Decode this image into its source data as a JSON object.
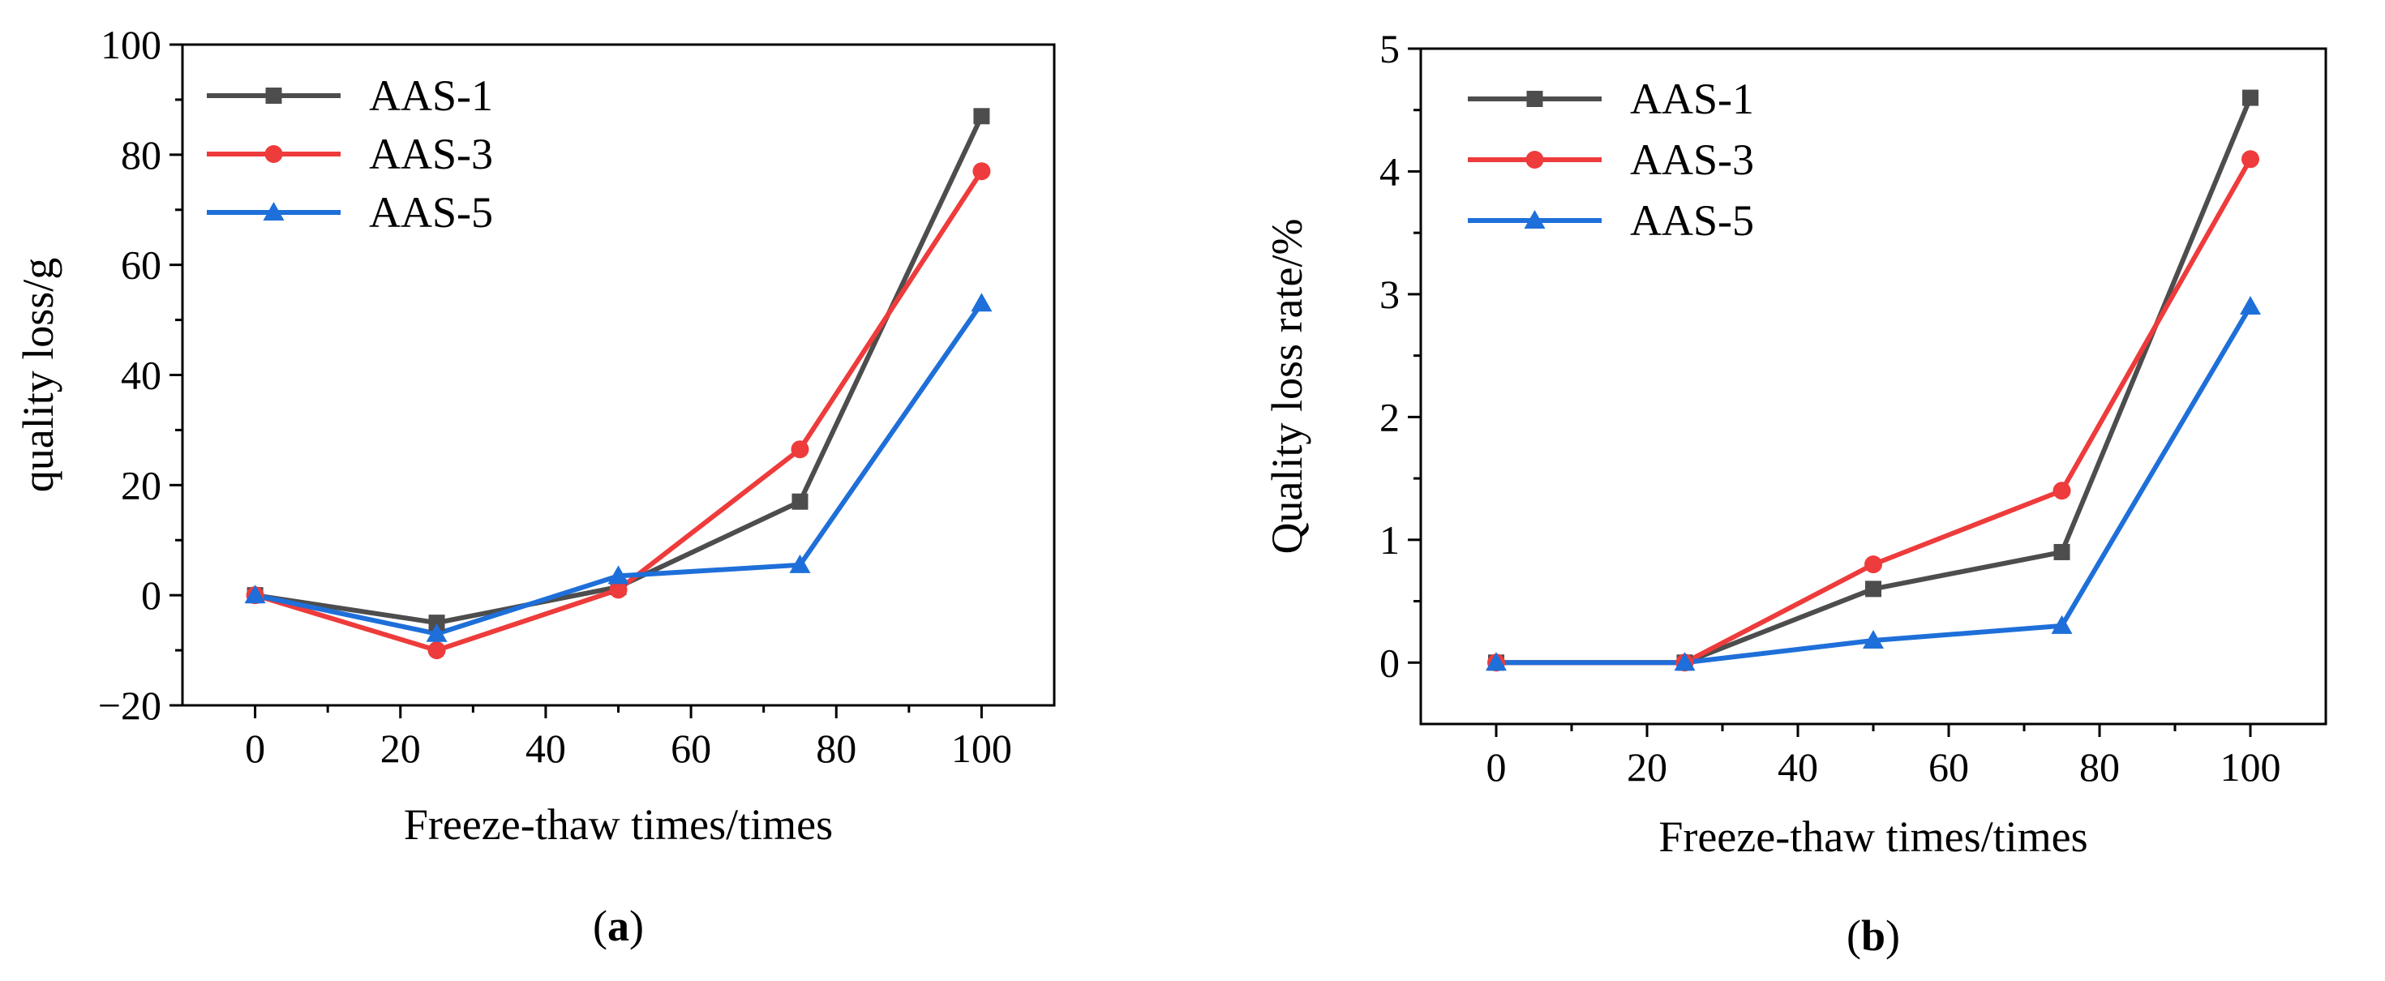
{
  "chart_data": [
    {
      "panel": "a",
      "caption": "(a)",
      "caption_label": "a",
      "type": "line",
      "xlabel": "Freeze-thaw times/times",
      "ylabel": "quality loss/g",
      "xlim": [
        -10,
        110
      ],
      "ylim": [
        -20,
        100
      ],
      "xticks": [
        0,
        20,
        40,
        60,
        80,
        100
      ],
      "yticks": [
        -20,
        0,
        20,
        40,
        60,
        80,
        100
      ],
      "ytick_labels": [
        "−20",
        "0",
        "20",
        "40",
        "60",
        "80",
        "100"
      ],
      "x": [
        0,
        25,
        50,
        75,
        100
      ],
      "legend_position": "top-left",
      "series": [
        {
          "name": "AAS-1",
          "color": "#4d4d4d",
          "marker": "square",
          "values": [
            0,
            -5,
            1.5,
            17,
            87
          ]
        },
        {
          "name": "AAS-3",
          "color": "#ee3b3b",
          "marker": "circle",
          "values": [
            0,
            -10,
            1,
            26.5,
            77
          ]
        },
        {
          "name": "AAS-5",
          "color": "#1e6fd9",
          "marker": "triangle",
          "values": [
            0,
            -7,
            3.5,
            5.5,
            53
          ]
        }
      ]
    },
    {
      "panel": "b",
      "caption": "(b)",
      "caption_label": "b",
      "type": "line",
      "xlabel": "Freeze-thaw times/times",
      "ylabel": "Quality loss rate/%",
      "xlim": [
        -10,
        110
      ],
      "ylim": [
        -0.5,
        5
      ],
      "xticks": [
        0,
        20,
        40,
        60,
        80,
        100
      ],
      "yticks": [
        0,
        1,
        2,
        3,
        4,
        5
      ],
      "ytick_labels": [
        "0",
        "1",
        "2",
        "3",
        "4",
        "5"
      ],
      "x": [
        0,
        25,
        50,
        75,
        100
      ],
      "legend_position": "top-left",
      "series": [
        {
          "name": "AAS-1",
          "color": "#4d4d4d",
          "marker": "square",
          "values": [
            0,
            0,
            0.6,
            0.9,
            4.6
          ]
        },
        {
          "name": "AAS-3",
          "color": "#ee3b3b",
          "marker": "circle",
          "values": [
            0,
            0,
            0.8,
            1.4,
            4.1
          ]
        },
        {
          "name": "AAS-5",
          "color": "#1e6fd9",
          "marker": "triangle",
          "values": [
            0,
            0,
            0.18,
            0.3,
            2.9
          ]
        }
      ]
    }
  ]
}
